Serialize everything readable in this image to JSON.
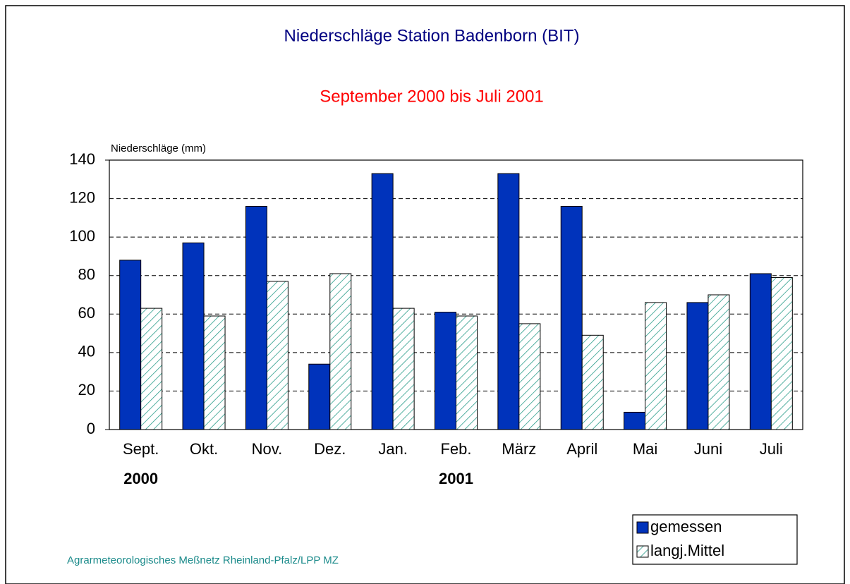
{
  "chart_data": {
    "type": "bar",
    "title": "Niederschläge Station Badenborn (BIT)",
    "subtitle": "September 2000 bis Juli 2001",
    "y_axis_label": "Niederschläge (mm)",
    "categories": [
      "Sept.",
      "Okt.",
      "Nov.",
      "Dez.",
      "Jan.",
      "Feb.",
      "März",
      "April",
      "Mai",
      "Juni",
      "Juli"
    ],
    "year_labels": [
      "2000",
      null,
      null,
      null,
      null,
      "2001",
      null,
      null,
      null,
      null,
      null
    ],
    "series": [
      {
        "name": "gemessen",
        "color": "#0033bb",
        "values": [
          88,
          97,
          116,
          34,
          133,
          61,
          133,
          116,
          9,
          66,
          81
        ]
      },
      {
        "name": "langj.Mittel",
        "color": "#2a9d8a",
        "values": [
          63,
          59,
          77,
          81,
          63,
          59,
          55,
          49,
          66,
          70,
          79
        ]
      }
    ],
    "ylim": [
      0,
      140
    ],
    "yticks": [
      0,
      20,
      40,
      60,
      80,
      100,
      120,
      140
    ],
    "grid": true,
    "footer": "Agrarmeteorologisches Meßnetz Rheinland-Pfalz/LPP MZ"
  }
}
